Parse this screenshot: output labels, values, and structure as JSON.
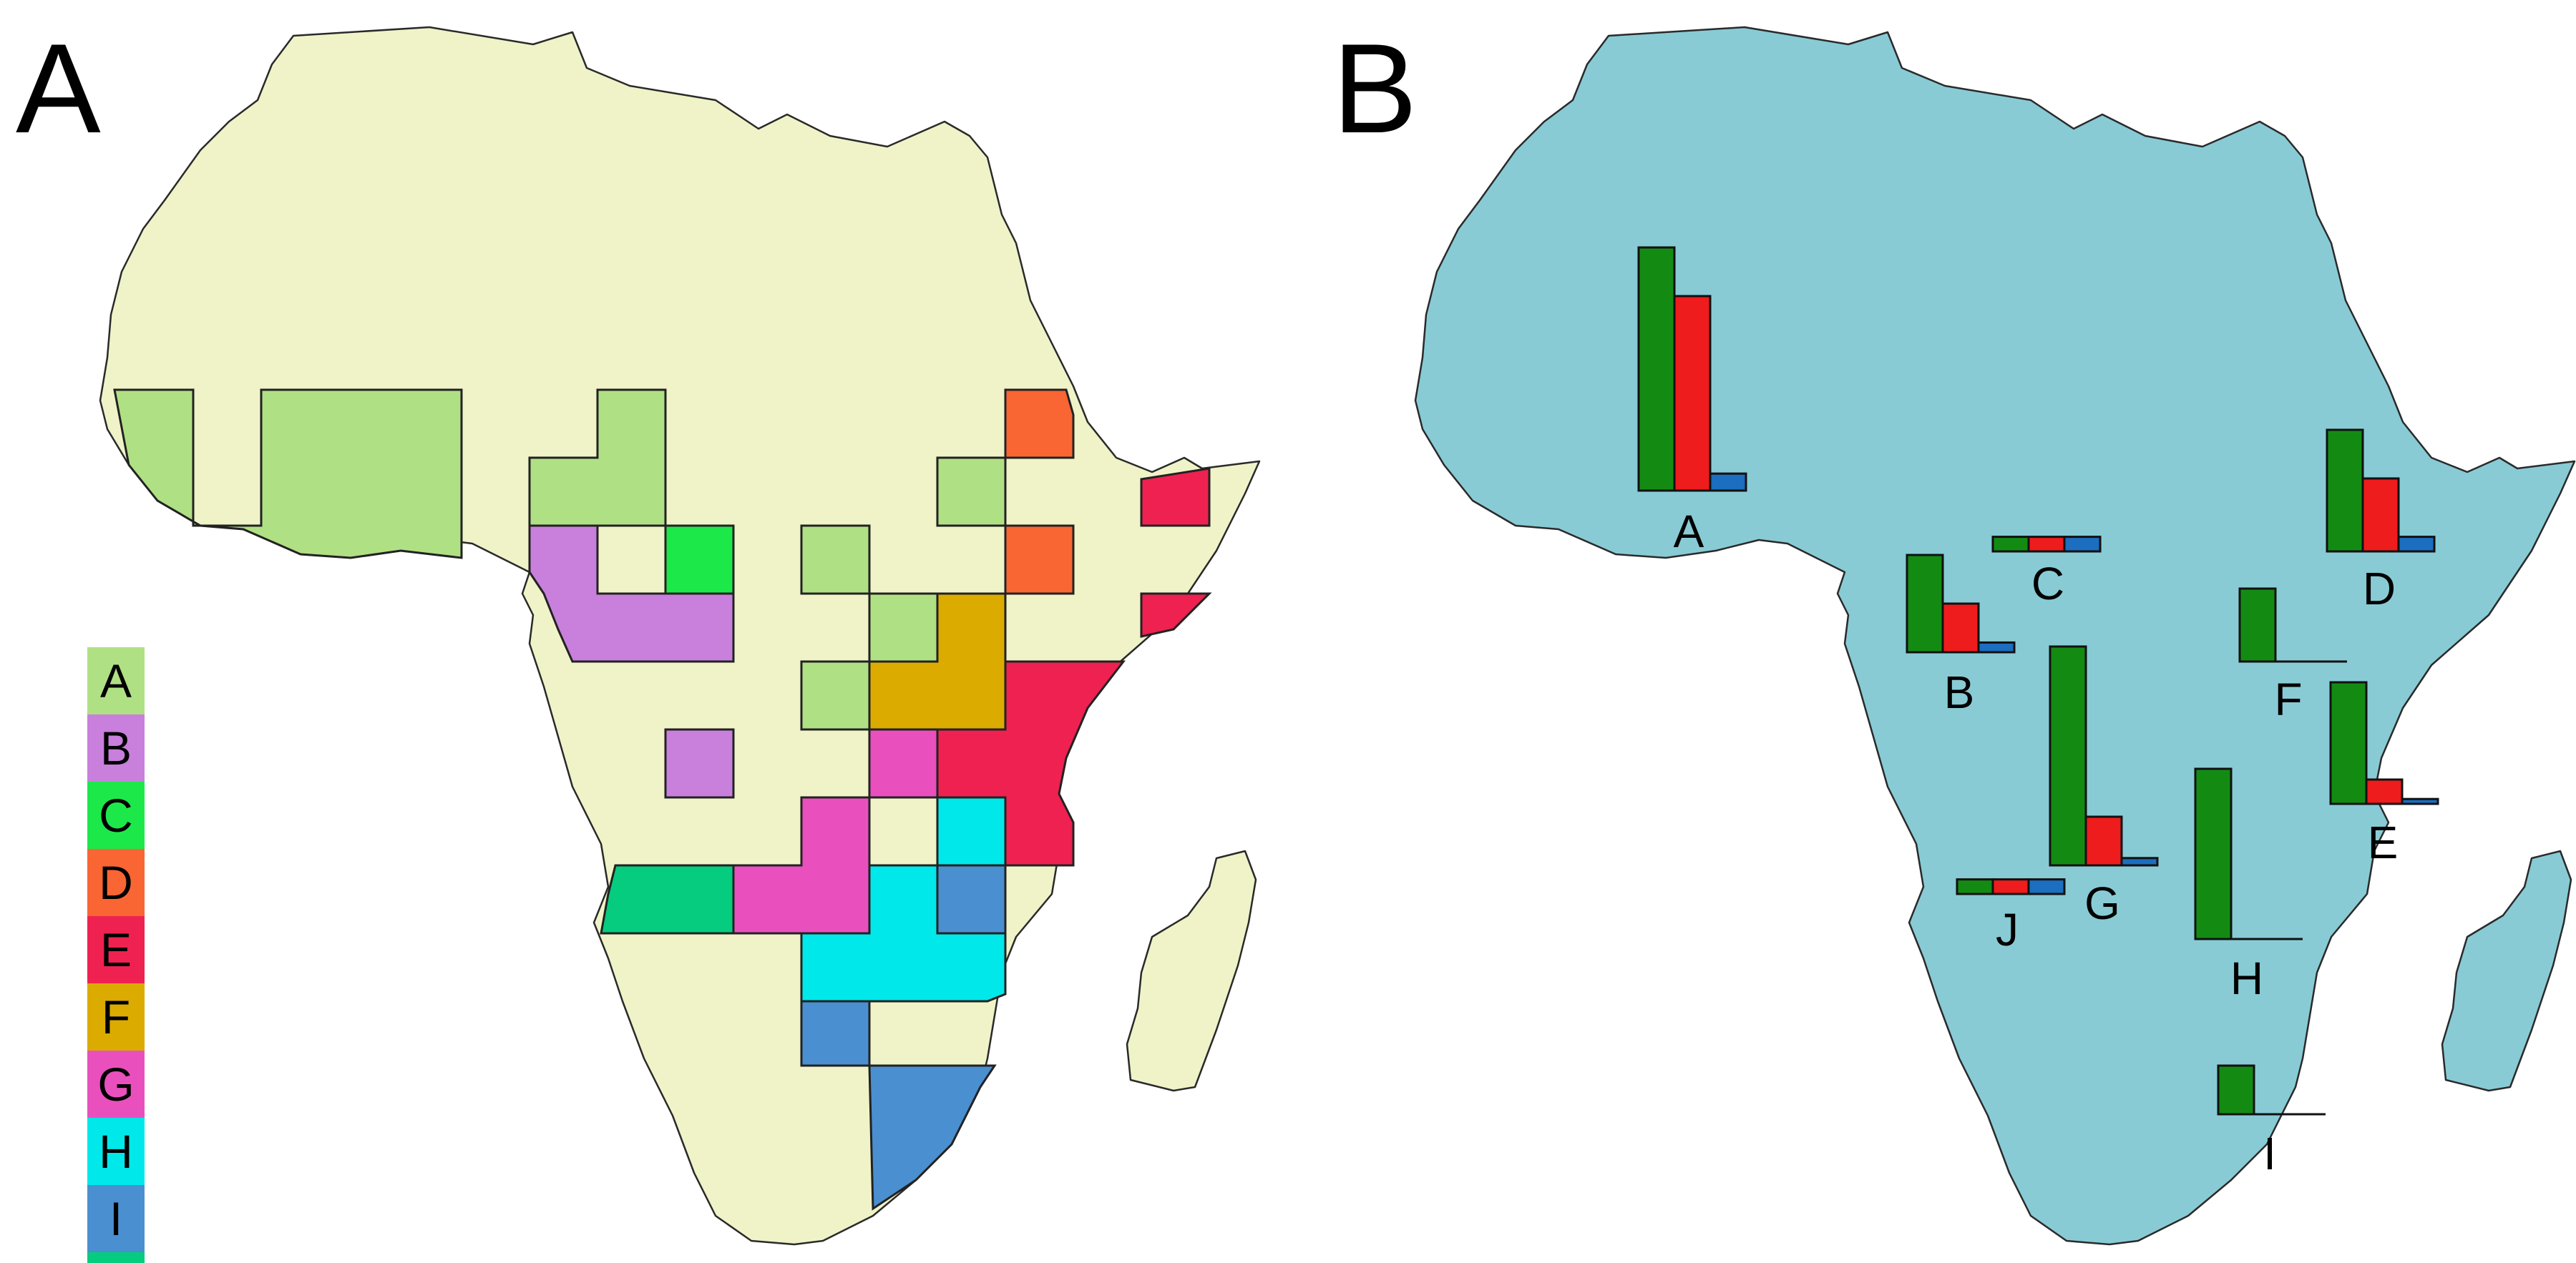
{
  "panels": [
    {
      "id": "A",
      "label": "A"
    },
    {
      "id": "B",
      "label": "B"
    }
  ],
  "colors": {
    "land_a": "#f0f3c8",
    "land_b": "#88cbd5",
    "bar_series_1": "#138b13",
    "bar_series_2": "#ee1c1c",
    "bar_series_3": "#1b6ec0"
  },
  "regions": [
    {
      "id": "A",
      "label": "A",
      "color": "#b0e084"
    },
    {
      "id": "B",
      "label": "B",
      "color": "#c97fdc"
    },
    {
      "id": "C",
      "label": "C",
      "color": "#1de84a"
    },
    {
      "id": "D",
      "label": "D",
      "color": "#fa6534"
    },
    {
      "id": "E",
      "label": "E",
      "color": "#ef2150"
    },
    {
      "id": "F",
      "label": "F",
      "color": "#dbab00"
    },
    {
      "id": "G",
      "label": "G",
      "color": "#e950bd"
    },
    {
      "id": "H",
      "label": "H",
      "color": "#00e8ea"
    },
    {
      "id": "I",
      "label": "I",
      "color": "#4a8fd0"
    },
    {
      "id": "J",
      "label": "J",
      "color": "#05cc7f"
    }
  ],
  "chart_data": {
    "type": "bar",
    "categories": [
      "A",
      "B",
      "C",
      "D",
      "E",
      "F",
      "G",
      "H",
      "I",
      "J"
    ],
    "series": [
      {
        "values": [
          100,
          40,
          6,
          50,
          50,
          30,
          90,
          70,
          20,
          6
        ]
      },
      {
        "values": [
          80,
          20,
          6,
          30,
          10,
          0,
          20,
          0,
          0,
          6
        ]
      },
      {
        "values": [
          7,
          4,
          6,
          6,
          2,
          0,
          3,
          0,
          0,
          6
        ]
      }
    ]
  }
}
